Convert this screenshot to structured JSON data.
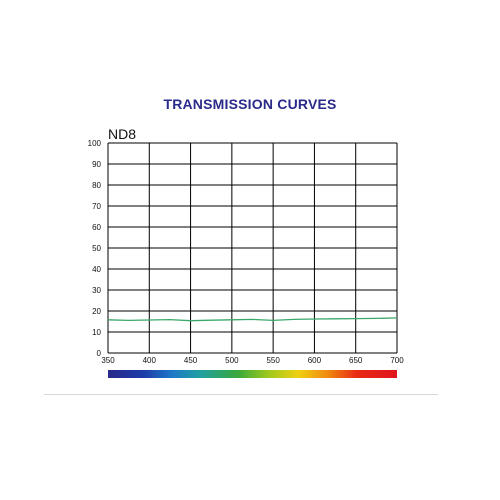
{
  "chart_data": {
    "type": "line",
    "title": "TRANSMISSION CURVES",
    "subtitle": "ND8",
    "xlabel": "",
    "ylabel": "",
    "xlim": [
      350,
      700
    ],
    "ylim": [
      0,
      100
    ],
    "x_ticks": [
      350,
      400,
      450,
      500,
      550,
      600,
      650,
      700
    ],
    "y_ticks": [
      0,
      10,
      20,
      30,
      40,
      50,
      60,
      70,
      80,
      90,
      100
    ],
    "grid": true,
    "series": [
      {
        "color": "#3aa86a",
        "x": [
          350,
          375,
          400,
          425,
          450,
          475,
          500,
          525,
          550,
          575,
          600,
          625,
          650,
          675,
          700
        ],
        "y": [
          15.8,
          15.5,
          15.7,
          15.9,
          15.4,
          15.6,
          15.8,
          16.0,
          15.5,
          16.0,
          16.2,
          16.3,
          16.4,
          16.5,
          16.7
        ]
      }
    ]
  }
}
